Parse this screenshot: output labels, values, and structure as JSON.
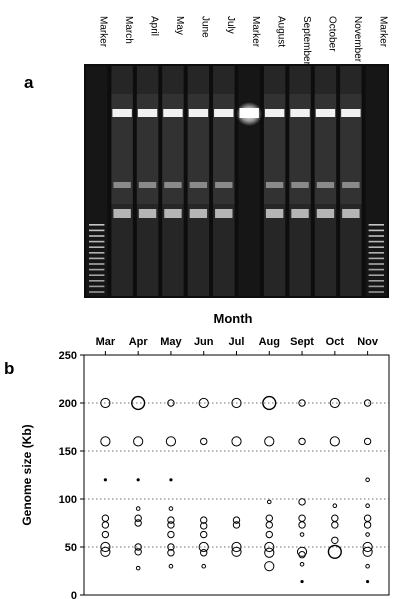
{
  "panel_a": {
    "label": "a",
    "lanes": [
      "Marker",
      "March",
      "April",
      "May",
      "June",
      "July",
      "Marker",
      "August",
      "September",
      "October",
      "November",
      "Marker"
    ]
  },
  "panel_b": {
    "label": "b",
    "month_title": "Month"
  },
  "chart_data": {
    "type": "scatter",
    "title": "",
    "xlabel": "Month",
    "ylabel": "Genome size (Kb)",
    "categories": [
      "Mar",
      "Apr",
      "May",
      "Jun",
      "Jul",
      "Aug",
      "Sept",
      "Oct",
      "Nov"
    ],
    "ylim": [
      0,
      250
    ],
    "yticks": [
      0,
      50,
      100,
      150,
      200,
      250
    ],
    "grid": "dotted horizontal at 50, 100, 150, 200",
    "series": [
      {
        "values": [
          {
            "x": "Mar",
            "y": 200,
            "size": "medium"
          },
          {
            "x": "Mar",
            "y": 160,
            "size": "medium"
          },
          {
            "x": "Mar",
            "y": 120,
            "size": "dot"
          },
          {
            "x": "Mar",
            "y": 80,
            "size": "small"
          },
          {
            "x": "Mar",
            "y": 73,
            "size": "small"
          },
          {
            "x": "Mar",
            "y": 63,
            "size": "small"
          },
          {
            "x": "Mar",
            "y": 50,
            "size": "medium"
          },
          {
            "x": "Mar",
            "y": 45,
            "size": "medium"
          },
          {
            "x": "Apr",
            "y": 200,
            "size": "large"
          },
          {
            "x": "Apr",
            "y": 160,
            "size": "medium"
          },
          {
            "x": "Apr",
            "y": 120,
            "size": "dot"
          },
          {
            "x": "Apr",
            "y": 90,
            "size": "tiny"
          },
          {
            "x": "Apr",
            "y": 80,
            "size": "small"
          },
          {
            "x": "Apr",
            "y": 75,
            "size": "small"
          },
          {
            "x": "Apr",
            "y": 50,
            "size": "small"
          },
          {
            "x": "Apr",
            "y": 45,
            "size": "small"
          },
          {
            "x": "Apr",
            "y": 28,
            "size": "tiny"
          },
          {
            "x": "May",
            "y": 200,
            "size": "small"
          },
          {
            "x": "May",
            "y": 160,
            "size": "medium"
          },
          {
            "x": "May",
            "y": 120,
            "size": "dot"
          },
          {
            "x": "May",
            "y": 90,
            "size": "tiny"
          },
          {
            "x": "May",
            "y": 78,
            "size": "small"
          },
          {
            "x": "May",
            "y": 73,
            "size": "small"
          },
          {
            "x": "May",
            "y": 63,
            "size": "small"
          },
          {
            "x": "May",
            "y": 50,
            "size": "small"
          },
          {
            "x": "May",
            "y": 44,
            "size": "small"
          },
          {
            "x": "May",
            "y": 30,
            "size": "tiny"
          },
          {
            "x": "Jun",
            "y": 200,
            "size": "medium"
          },
          {
            "x": "Jun",
            "y": 160,
            "size": "small"
          },
          {
            "x": "Jun",
            "y": 78,
            "size": "small"
          },
          {
            "x": "Jun",
            "y": 72,
            "size": "small"
          },
          {
            "x": "Jun",
            "y": 63,
            "size": "small"
          },
          {
            "x": "Jun",
            "y": 50,
            "size": "medium"
          },
          {
            "x": "Jun",
            "y": 44,
            "size": "small"
          },
          {
            "x": "Jun",
            "y": 30,
            "size": "tiny"
          },
          {
            "x": "Jul",
            "y": 200,
            "size": "medium"
          },
          {
            "x": "Jul",
            "y": 160,
            "size": "medium"
          },
          {
            "x": "Jul",
            "y": 78,
            "size": "small"
          },
          {
            "x": "Jul",
            "y": 73,
            "size": "small"
          },
          {
            "x": "Jul",
            "y": 50,
            "size": "medium"
          },
          {
            "x": "Jul",
            "y": 45,
            "size": "medium"
          },
          {
            "x": "Aug",
            "y": 200,
            "size": "large"
          },
          {
            "x": "Aug",
            "y": 160,
            "size": "medium"
          },
          {
            "x": "Aug",
            "y": 97,
            "size": "tiny"
          },
          {
            "x": "Aug",
            "y": 80,
            "size": "small"
          },
          {
            "x": "Aug",
            "y": 73,
            "size": "small"
          },
          {
            "x": "Aug",
            "y": 63,
            "size": "small"
          },
          {
            "x": "Aug",
            "y": 50,
            "size": "medium"
          },
          {
            "x": "Aug",
            "y": 44,
            "size": "medium"
          },
          {
            "x": "Aug",
            "y": 30,
            "size": "medium"
          },
          {
            "x": "Sept",
            "y": 200,
            "size": "small"
          },
          {
            "x": "Sept",
            "y": 160,
            "size": "small"
          },
          {
            "x": "Sept",
            "y": 97,
            "size": "small"
          },
          {
            "x": "Sept",
            "y": 80,
            "size": "small"
          },
          {
            "x": "Sept",
            "y": 73,
            "size": "small"
          },
          {
            "x": "Sept",
            "y": 63,
            "size": "tiny"
          },
          {
            "x": "Sept",
            "y": 45,
            "size": "medium"
          },
          {
            "x": "Sept",
            "y": 42,
            "size": "small"
          },
          {
            "x": "Sept",
            "y": 32,
            "size": "tiny"
          },
          {
            "x": "Sept",
            "y": 14,
            "size": "dot"
          },
          {
            "x": "Oct",
            "y": 200,
            "size": "medium"
          },
          {
            "x": "Oct",
            "y": 160,
            "size": "medium"
          },
          {
            "x": "Oct",
            "y": 93,
            "size": "tiny"
          },
          {
            "x": "Oct",
            "y": 80,
            "size": "small"
          },
          {
            "x": "Oct",
            "y": 73,
            "size": "small"
          },
          {
            "x": "Oct",
            "y": 57,
            "size": "small"
          },
          {
            "x": "Oct",
            "y": 45,
            "size": "large"
          },
          {
            "x": "Nov",
            "y": 200,
            "size": "small"
          },
          {
            "x": "Nov",
            "y": 160,
            "size": "small"
          },
          {
            "x": "Nov",
            "y": 120,
            "size": "tiny"
          },
          {
            "x": "Nov",
            "y": 93,
            "size": "tiny"
          },
          {
            "x": "Nov",
            "y": 80,
            "size": "small"
          },
          {
            "x": "Nov",
            "y": 73,
            "size": "small"
          },
          {
            "x": "Nov",
            "y": 63,
            "size": "tiny"
          },
          {
            "x": "Nov",
            "y": 50,
            "size": "medium"
          },
          {
            "x": "Nov",
            "y": 45,
            "size": "medium"
          },
          {
            "x": "Nov",
            "y": 30,
            "size": "tiny"
          },
          {
            "x": "Nov",
            "y": 14,
            "size": "dot"
          }
        ]
      }
    ]
  }
}
